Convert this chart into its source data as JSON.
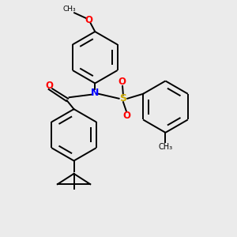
{
  "bg_color": "#ebebeb",
  "atom_colors": {
    "N": "#0000ff",
    "O": "#ff0000",
    "S": "#ccaa00",
    "C": "#000000"
  },
  "line_color": "#000000",
  "line_width": 1.4
}
